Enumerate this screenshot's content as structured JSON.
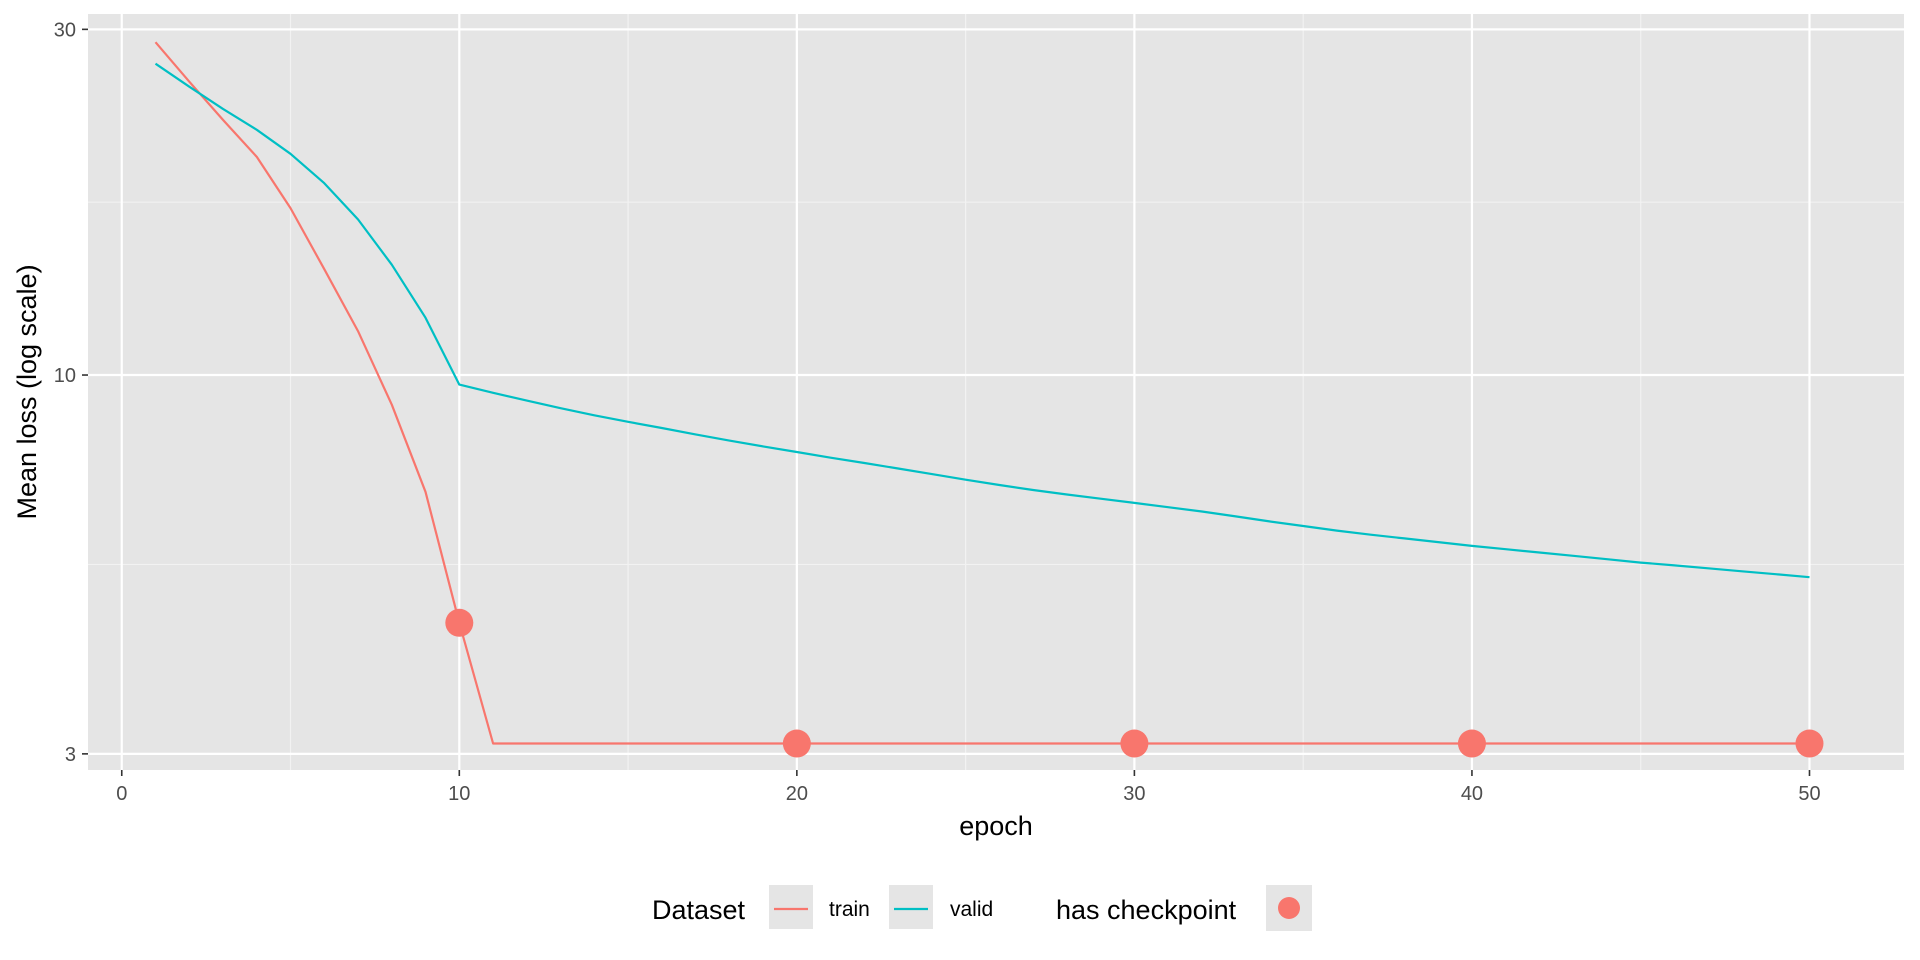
{
  "chart_data": {
    "type": "line",
    "title": "",
    "xlabel": "epoch",
    "ylabel": "Mean loss (log scale)",
    "y_scale": "log",
    "grid": true,
    "legend_position": "bottom",
    "xlim": [
      -1,
      52.8
    ],
    "ylim": [
      2.85,
      31.5
    ],
    "x_ticks": [
      0,
      10,
      20,
      30,
      40,
      50
    ],
    "x_tick_labels": [
      "0",
      "10",
      "20",
      "30",
      "40",
      "50"
    ],
    "y_ticks": [
      3,
      10,
      30
    ],
    "y_tick_labels": [
      "3",
      "10",
      "30"
    ],
    "legend": {
      "dataset_title": "Dataset",
      "checkpoint_title": "has checkpoint"
    },
    "series": [
      {
        "name": "train",
        "color": "#F8766D",
        "x": [
          1,
          2,
          3,
          4,
          5,
          6,
          7,
          8,
          9,
          10,
          11,
          12,
          13,
          14,
          15,
          16,
          17,
          18,
          19,
          20,
          21,
          22,
          23,
          24,
          25,
          26,
          27,
          28,
          29,
          30,
          31,
          32,
          33,
          34,
          35,
          36,
          37,
          38,
          39,
          40,
          41,
          42,
          43,
          44,
          45,
          46,
          47,
          48,
          49,
          50
        ],
        "y": [
          28.8,
          25.4,
          22.5,
          20.0,
          17.0,
          14.0,
          11.5,
          9.1,
          6.9,
          4.55,
          3.1,
          3.1,
          3.1,
          3.1,
          3.1,
          3.1,
          3.1,
          3.1,
          3.1,
          3.1,
          3.1,
          3.1,
          3.1,
          3.1,
          3.1,
          3.1,
          3.1,
          3.1,
          3.1,
          3.1,
          3.1,
          3.1,
          3.1,
          3.1,
          3.1,
          3.1,
          3.1,
          3.1,
          3.1,
          3.1,
          3.1,
          3.1,
          3.1,
          3.1,
          3.1,
          3.1,
          3.1,
          3.1,
          3.1,
          3.1
        ]
      },
      {
        "name": "valid",
        "color": "#00BFC4",
        "x": [
          1,
          2,
          3,
          4,
          5,
          6,
          7,
          8,
          9,
          10,
          11,
          12,
          13,
          14,
          15,
          16,
          17,
          18,
          19,
          20,
          21,
          22,
          23,
          24,
          25,
          26,
          27,
          28,
          29,
          30,
          31,
          32,
          33,
          34,
          35,
          36,
          37,
          38,
          39,
          40,
          41,
          42,
          43,
          44,
          45,
          46,
          47,
          48,
          49,
          50
        ],
        "y": [
          26.9,
          25.0,
          23.3,
          21.8,
          20.2,
          18.4,
          16.4,
          14.2,
          12.0,
          9.7,
          9.45,
          9.22,
          9.0,
          8.8,
          8.62,
          8.45,
          8.28,
          8.12,
          7.97,
          7.83,
          7.69,
          7.56,
          7.43,
          7.3,
          7.17,
          7.05,
          6.94,
          6.84,
          6.75,
          6.66,
          6.57,
          6.48,
          6.38,
          6.28,
          6.19,
          6.1,
          6.02,
          5.95,
          5.88,
          5.81,
          5.75,
          5.69,
          5.63,
          5.57,
          5.51,
          5.46,
          5.41,
          5.36,
          5.31,
          5.26
        ]
      }
    ],
    "checkpoints": {
      "name": "has checkpoint",
      "color": "#F8766D",
      "x": [
        10,
        20,
        30,
        40,
        50
      ],
      "y": [
        4.55,
        3.1,
        3.1,
        3.1,
        3.1
      ]
    }
  }
}
